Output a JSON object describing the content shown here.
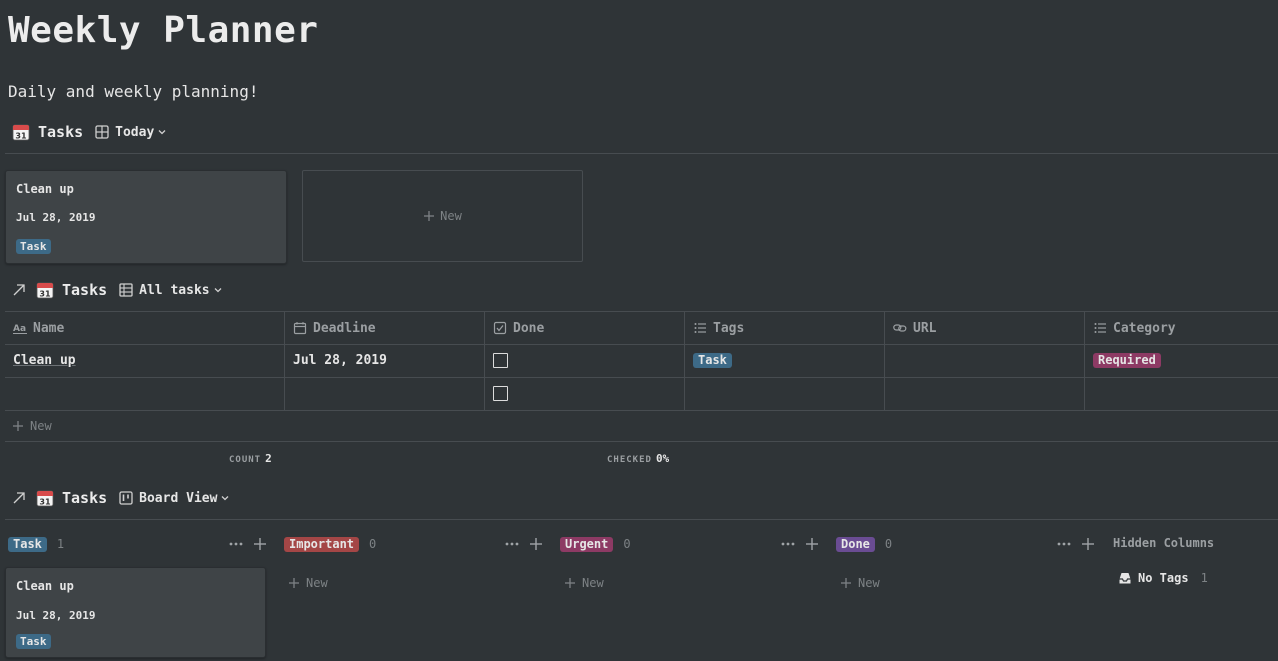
{
  "page": {
    "title": "Weekly Planner",
    "subtitle": "Daily and weekly planning!"
  },
  "gallery": {
    "db_title": "Tasks",
    "view_name": "Today",
    "cards": [
      {
        "name": "Clean up",
        "date": "Jul 28, 2019",
        "tag": "Task"
      }
    ],
    "new_label": "New"
  },
  "table": {
    "db_title": "Tasks",
    "view_name": "All tasks",
    "columns": [
      "Name",
      "Deadline",
      "Done",
      "Tags",
      "URL",
      "Category"
    ],
    "rows": [
      {
        "name": "Clean up",
        "deadline": "Jul 28, 2019",
        "done": false,
        "tag": "Task",
        "url": "",
        "category": "Required"
      },
      {
        "name": "",
        "deadline": "",
        "done": false,
        "tag": "",
        "url": "",
        "category": ""
      }
    ],
    "new_label": "New",
    "footer": {
      "count_label": "COUNT",
      "count_value": "2",
      "checked_label": "CHECKED",
      "checked_value": "0%"
    }
  },
  "board": {
    "db_title": "Tasks",
    "view_name": "Board View",
    "columns": [
      {
        "label": "Task",
        "count": "1",
        "color": "#3d6a87"
      },
      {
        "label": "Important",
        "count": "0",
        "color": "#a44646"
      },
      {
        "label": "Urgent",
        "count": "0",
        "color": "#8d3a64"
      },
      {
        "label": "Done",
        "count": "0",
        "color": "#6a4c93"
      }
    ],
    "card": {
      "name": "Clean up",
      "date": "Jul 28, 2019",
      "tag": "Task"
    },
    "new_label": "New",
    "hidden_columns_label": "Hidden Columns",
    "no_tags_label": "No Tags",
    "no_tags_count": "1"
  },
  "icons": {
    "calendar": "calendar-icon",
    "gallery": "gallery-view-icon",
    "table": "table-view-icon",
    "board": "board-view-icon",
    "link": "link-arrow-icon"
  }
}
